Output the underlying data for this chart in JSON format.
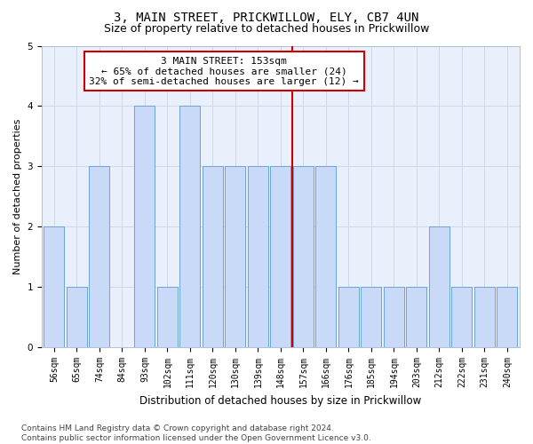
{
  "title": "3, MAIN STREET, PRICKWILLOW, ELY, CB7 4UN",
  "subtitle": "Size of property relative to detached houses in Prickwillow",
  "xlabel": "Distribution of detached houses by size in Prickwillow",
  "ylabel": "Number of detached properties",
  "bar_labels": [
    "56sqm",
    "65sqm",
    "74sqm",
    "84sqm",
    "93sqm",
    "102sqm",
    "111sqm",
    "120sqm",
    "130sqm",
    "139sqm",
    "148sqm",
    "157sqm",
    "166sqm",
    "176sqm",
    "185sqm",
    "194sqm",
    "203sqm",
    "212sqm",
    "222sqm",
    "231sqm",
    "240sqm"
  ],
  "bar_values": [
    2,
    1,
    3,
    0,
    4,
    1,
    4,
    3,
    3,
    3,
    3,
    3,
    3,
    1,
    1,
    1,
    1,
    2,
    1,
    1,
    1
  ],
  "bar_color": "#c9daf8",
  "bar_edgecolor": "#6aa3d5",
  "vline_x": 11,
  "vline_color": "#cc0000",
  "annotation_text": "3 MAIN STREET: 153sqm\n← 65% of detached houses are smaller (24)\n32% of semi-detached houses are larger (12) →",
  "annotation_box_color": "#ffffff",
  "annotation_box_edgecolor": "#cc0000",
  "ylim": [
    0,
    5
  ],
  "yticks": [
    0,
    1,
    2,
    3,
    4,
    5
  ],
  "grid_color": "#d0d8e8",
  "background_color": "#eaf0fb",
  "footer": "Contains HM Land Registry data © Crown copyright and database right 2024.\nContains public sector information licensed under the Open Government Licence v3.0.",
  "title_fontsize": 10,
  "subtitle_fontsize": 9,
  "xlabel_fontsize": 8.5,
  "ylabel_fontsize": 8,
  "tick_fontsize": 7,
  "annotation_fontsize": 8,
  "footer_fontsize": 6.5
}
